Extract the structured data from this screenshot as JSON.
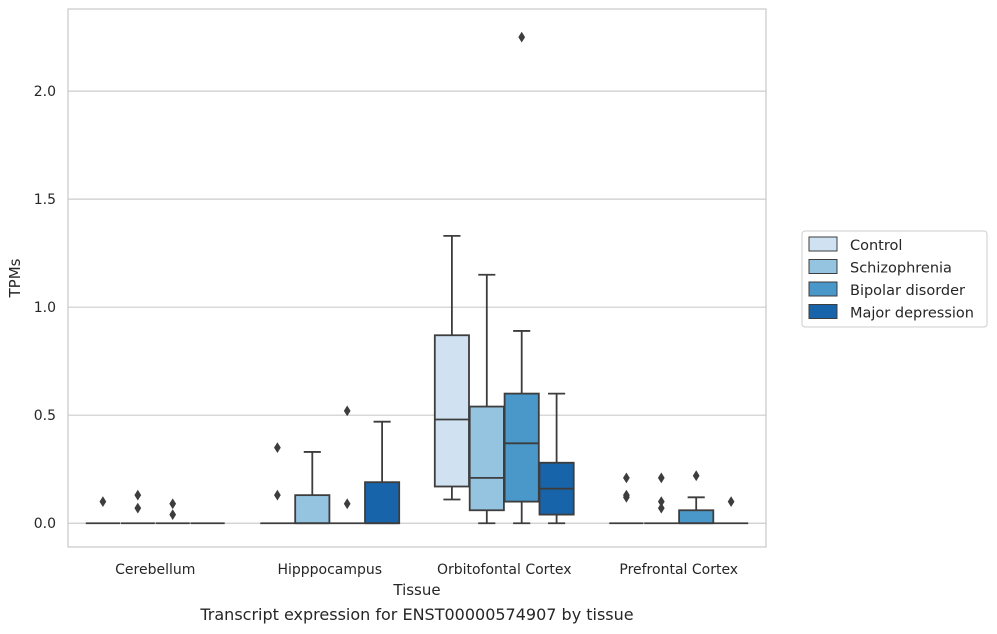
{
  "chart_data": {
    "type": "box",
    "caption": "Transcript expression for ENST00000574907 by tissue",
    "xlabel": "Tissue",
    "ylabel": "TPMs",
    "ylim": [
      -0.11,
      2.38
    ],
    "yticks": [
      0.0,
      0.5,
      1.0,
      1.5,
      2.0
    ],
    "ytick_labels": [
      "0.0",
      "0.5",
      "1.0",
      "1.5",
      "2.0"
    ],
    "grid": "horizontal",
    "legend_position": "right",
    "categories": [
      "Cerebellum",
      "Hipppocampus",
      "Orbitofontal Cortex",
      "Prefrontal Cortex"
    ],
    "series": [
      {
        "name": "Control",
        "color": "#d0e1f2",
        "boxes": [
          {
            "q1": 0,
            "median": 0,
            "q3": 0,
            "whislo": 0,
            "whishi": 0,
            "fliers": [
              0.1
            ]
          },
          {
            "q1": 0,
            "median": 0,
            "q3": 0,
            "whislo": 0,
            "whishi": 0,
            "fliers": [
              0.13,
              0.35
            ]
          },
          {
            "q1": 0.17,
            "median": 0.48,
            "q3": 0.87,
            "whislo": 0.11,
            "whishi": 1.33,
            "fliers": []
          },
          {
            "q1": 0,
            "median": 0,
            "q3": 0,
            "whislo": 0,
            "whishi": 0,
            "fliers": [
              0.12,
              0.13,
              0.21
            ]
          }
        ]
      },
      {
        "name": "Schizophrenia",
        "color": "#94c4df",
        "boxes": [
          {
            "q1": 0,
            "median": 0,
            "q3": 0,
            "whislo": 0,
            "whishi": 0,
            "fliers": [
              0.07,
              0.13
            ]
          },
          {
            "q1": 0,
            "median": 0,
            "q3": 0.13,
            "whislo": 0,
            "whishi": 0.33,
            "fliers": []
          },
          {
            "q1": 0.06,
            "median": 0.21,
            "q3": 0.54,
            "whislo": 0,
            "whishi": 1.15,
            "fliers": []
          },
          {
            "q1": 0,
            "median": 0,
            "q3": 0,
            "whislo": 0,
            "whishi": 0,
            "fliers": [
              0.07,
              0.1,
              0.21
            ]
          }
        ]
      },
      {
        "name": "Bipolar disorder",
        "color": "#4a98c9",
        "boxes": [
          {
            "q1": 0,
            "median": 0,
            "q3": 0,
            "whislo": 0,
            "whishi": 0,
            "fliers": [
              0.04,
              0.09
            ]
          },
          {
            "q1": 0,
            "median": 0,
            "q3": 0,
            "whislo": 0,
            "whishi": 0,
            "fliers": [
              0.09,
              0.52
            ]
          },
          {
            "q1": 0.1,
            "median": 0.37,
            "q3": 0.6,
            "whislo": 0,
            "whishi": 0.89,
            "fliers": [
              2.25
            ]
          },
          {
            "q1": 0,
            "median": 0,
            "q3": 0.06,
            "whislo": 0,
            "whishi": 0.12,
            "fliers": [
              0.22
            ]
          }
        ]
      },
      {
        "name": "Major depression",
        "color": "#1764ab",
        "boxes": [
          {
            "q1": 0,
            "median": 0,
            "q3": 0,
            "whislo": 0,
            "whishi": 0,
            "fliers": []
          },
          {
            "q1": 0,
            "median": 0,
            "q3": 0.19,
            "whislo": 0,
            "whishi": 0.47,
            "fliers": []
          },
          {
            "q1": 0.04,
            "median": 0.16,
            "q3": 0.28,
            "whislo": 0,
            "whishi": 0.6,
            "fliers": []
          },
          {
            "q1": 0,
            "median": 0,
            "q3": 0,
            "whislo": 0,
            "whishi": 0,
            "fliers": [
              0.1
            ]
          }
        ]
      }
    ]
  }
}
